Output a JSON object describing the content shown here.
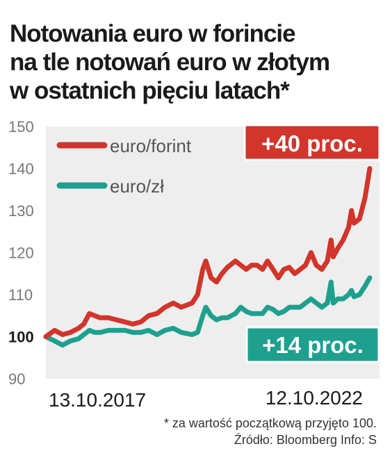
{
  "title_lines": [
    "Notowania euro w forincie",
    "na tle notowań euro w złotym",
    "w ostatnich pięciu latach*"
  ],
  "footnote": "* za wartość początkową przyjęto 100.",
  "source": "Źródło: Bloomberg   Info: S",
  "colors": {
    "euro_forint": "#d1352b",
    "euro_zl": "#1fa08e",
    "plot_bg": "#eeeeee",
    "badge_red": "#d1352b",
    "badge_teal": "#1fa08e"
  },
  "chart_data": {
    "type": "line",
    "title": "Notowania euro w forincie na tle notowań euro w złotym w ostatnich pięciu latach*",
    "xlabel": "",
    "ylabel": "",
    "ylim": [
      90,
      150
    ],
    "y_ticks": [
      90,
      100,
      110,
      120,
      130,
      140,
      150
    ],
    "x_tick_labels": [
      "13.10.2017",
      "12.10.2022"
    ],
    "x_range": [
      "2017-10-13",
      "2022-10-12"
    ],
    "grid": false,
    "legend_position": "top-left",
    "series": [
      {
        "name": "euro/forint",
        "color": "#d1352b",
        "end_label": "+40 proc.",
        "points": [
          [
            "2017-10-13",
            100
          ],
          [
            "2017-12-01",
            101.5
          ],
          [
            "2018-01-15",
            100.5
          ],
          [
            "2018-03-01",
            101
          ],
          [
            "2018-04-15",
            102
          ],
          [
            "2018-05-15",
            103
          ],
          [
            "2018-06-15",
            105.5
          ],
          [
            "2018-07-15",
            105
          ],
          [
            "2018-08-15",
            104.5
          ],
          [
            "2018-10-01",
            104.5
          ],
          [
            "2018-11-15",
            104
          ],
          [
            "2019-01-01",
            103.5
          ],
          [
            "2019-02-15",
            103
          ],
          [
            "2019-04-01",
            103.5
          ],
          [
            "2019-05-15",
            105
          ],
          [
            "2019-07-01",
            105.5
          ],
          [
            "2019-08-15",
            107
          ],
          [
            "2019-10-01",
            108
          ],
          [
            "2019-11-15",
            107
          ],
          [
            "2020-01-15",
            108
          ],
          [
            "2020-02-15",
            110
          ],
          [
            "2020-03-15",
            116
          ],
          [
            "2020-04-01",
            118
          ],
          [
            "2020-05-01",
            114
          ],
          [
            "2020-06-01",
            113
          ],
          [
            "2020-07-01",
            115
          ],
          [
            "2020-08-01",
            116.5
          ],
          [
            "2020-09-15",
            118
          ],
          [
            "2020-10-15",
            117
          ],
          [
            "2020-11-15",
            116
          ],
          [
            "2020-12-15",
            117
          ],
          [
            "2021-01-15",
            117
          ],
          [
            "2021-02-15",
            116
          ],
          [
            "2021-03-15",
            118
          ],
          [
            "2021-04-15",
            116
          ],
          [
            "2021-05-15",
            114
          ],
          [
            "2021-06-15",
            116
          ],
          [
            "2021-07-15",
            116.5
          ],
          [
            "2021-08-15",
            115
          ],
          [
            "2021-09-15",
            116
          ],
          [
            "2021-10-15",
            117
          ],
          [
            "2021-11-15",
            120
          ],
          [
            "2021-12-15",
            117
          ],
          [
            "2022-01-15",
            116
          ],
          [
            "2022-02-15",
            118
          ],
          [
            "2022-03-08",
            123
          ],
          [
            "2022-03-20",
            119
          ],
          [
            "2022-04-15",
            121
          ],
          [
            "2022-05-15",
            123
          ],
          [
            "2022-06-15",
            126
          ],
          [
            "2022-07-01",
            130
          ],
          [
            "2022-07-15",
            127
          ],
          [
            "2022-08-15",
            128
          ],
          [
            "2022-09-15",
            133
          ],
          [
            "2022-10-12",
            140
          ]
        ]
      },
      {
        "name": "euro/zł",
        "color": "#1fa08e",
        "end_label": "+14 proc.",
        "points": [
          [
            "2017-10-13",
            100
          ],
          [
            "2017-12-01",
            99
          ],
          [
            "2018-01-15",
            98
          ],
          [
            "2018-03-01",
            99
          ],
          [
            "2018-04-15",
            99.5
          ],
          [
            "2018-05-15",
            100.5
          ],
          [
            "2018-06-15",
            101.5
          ],
          [
            "2018-07-15",
            101
          ],
          [
            "2018-08-15",
            101
          ],
          [
            "2018-10-01",
            101.5
          ],
          [
            "2018-11-15",
            101.5
          ],
          [
            "2019-01-01",
            101.5
          ],
          [
            "2019-02-15",
            101
          ],
          [
            "2019-04-01",
            101
          ],
          [
            "2019-05-15",
            101.5
          ],
          [
            "2019-07-01",
            100.5
          ],
          [
            "2019-08-15",
            101.5
          ],
          [
            "2019-10-01",
            102
          ],
          [
            "2019-11-15",
            101
          ],
          [
            "2020-01-15",
            100.5
          ],
          [
            "2020-02-15",
            101
          ],
          [
            "2020-03-15",
            105
          ],
          [
            "2020-04-01",
            107
          ],
          [
            "2020-05-01",
            105
          ],
          [
            "2020-06-01",
            104
          ],
          [
            "2020-07-01",
            104.5
          ],
          [
            "2020-08-01",
            104.5
          ],
          [
            "2020-09-15",
            105.5
          ],
          [
            "2020-10-15",
            107
          ],
          [
            "2020-11-15",
            106
          ],
          [
            "2020-12-15",
            105.5
          ],
          [
            "2021-01-15",
            105.5
          ],
          [
            "2021-02-15",
            105.5
          ],
          [
            "2021-03-15",
            107
          ],
          [
            "2021-04-15",
            106.5
          ],
          [
            "2021-05-15",
            105.5
          ],
          [
            "2021-06-15",
            106
          ],
          [
            "2021-07-15",
            107
          ],
          [
            "2021-08-15",
            107
          ],
          [
            "2021-09-15",
            107
          ],
          [
            "2021-10-15",
            108
          ],
          [
            "2021-11-15",
            109
          ],
          [
            "2021-12-15",
            108
          ],
          [
            "2022-01-15",
            107
          ],
          [
            "2022-02-15",
            108
          ],
          [
            "2022-03-08",
            113
          ],
          [
            "2022-03-20",
            108
          ],
          [
            "2022-04-15",
            109
          ],
          [
            "2022-05-15",
            109
          ],
          [
            "2022-06-15",
            110
          ],
          [
            "2022-07-01",
            111
          ],
          [
            "2022-07-15",
            109.5
          ],
          [
            "2022-08-15",
            110
          ],
          [
            "2022-09-15",
            112
          ],
          [
            "2022-10-12",
            114
          ]
        ]
      }
    ]
  }
}
